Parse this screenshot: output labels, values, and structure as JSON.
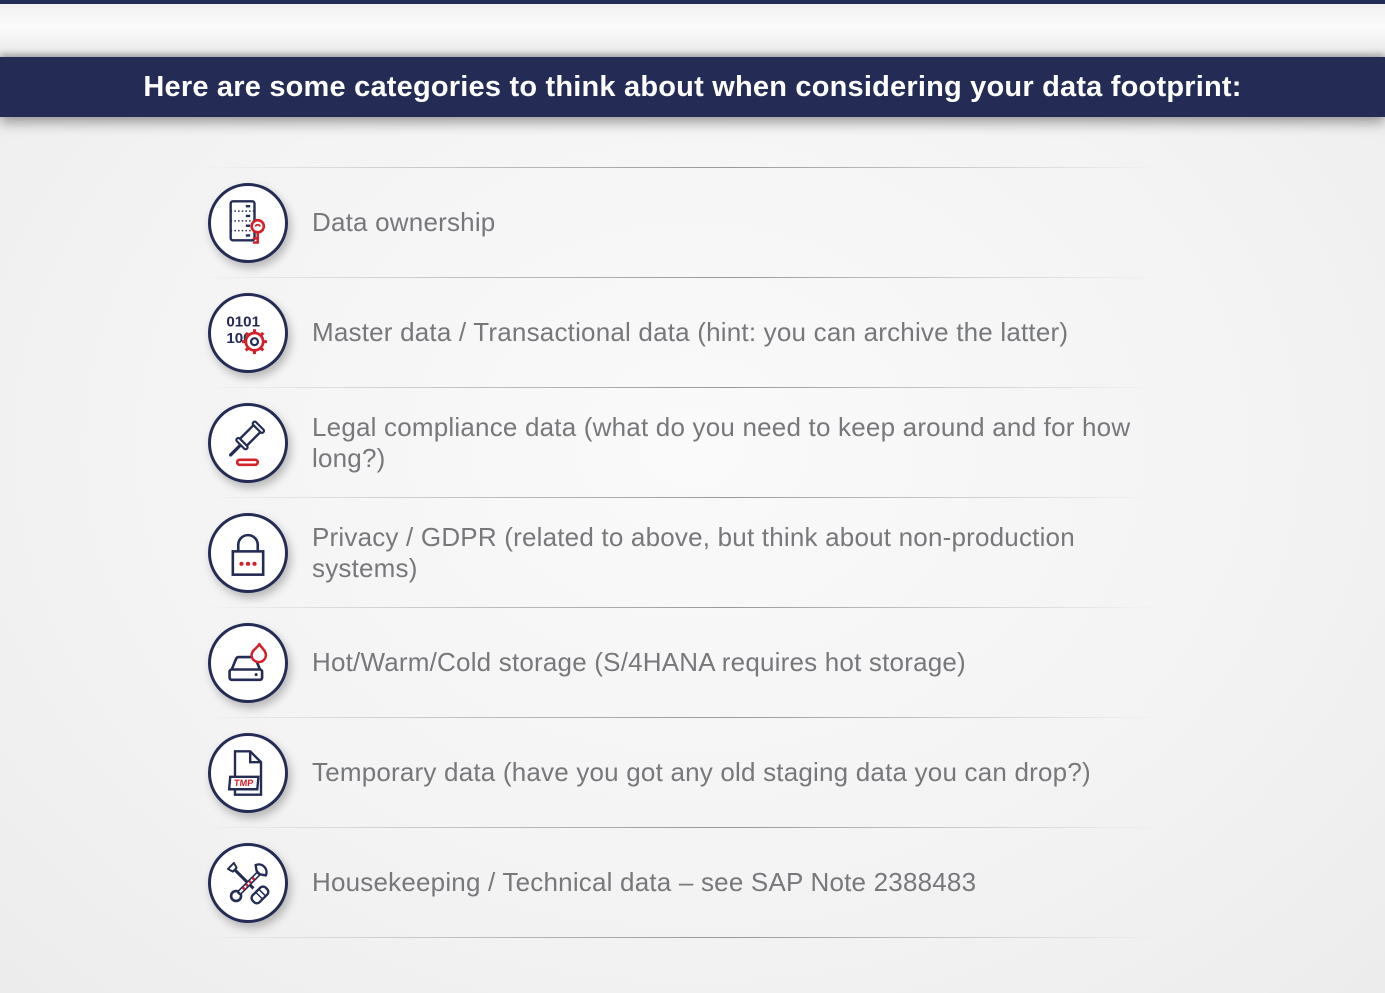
{
  "header": {
    "title": "Here are some categories to think about when considering your data footprint:"
  },
  "colors": {
    "navy": "#242c55",
    "red": "#d3222a",
    "text_gray": "#77787b",
    "background": "#f3f3f3"
  },
  "categories": [
    {
      "icon": "database-key-icon",
      "label": "Data ownership"
    },
    {
      "icon": "binary-gear-icon",
      "label": "Master data / Transactional data (hint: you can archive the latter)"
    },
    {
      "icon": "gavel-icon",
      "label": "Legal compliance data (what do you need to keep around and for how long?)"
    },
    {
      "icon": "padlock-icon",
      "label": "Privacy / GDPR (related to above, but think about non-production systems)"
    },
    {
      "icon": "harddrive-flame-icon",
      "label": "Hot/Warm/Cold storage (S/4HANA requires hot storage)"
    },
    {
      "icon": "tmp-file-icon",
      "label": "Temporary data (have you got any old staging data you can drop?)"
    },
    {
      "icon": "tools-icon",
      "label": "Housekeeping / Technical data – see SAP Note 2388483"
    }
  ],
  "icon_text": {
    "binary_line1": "0101",
    "binary_line2": "100",
    "tmp_label": "TMP"
  }
}
